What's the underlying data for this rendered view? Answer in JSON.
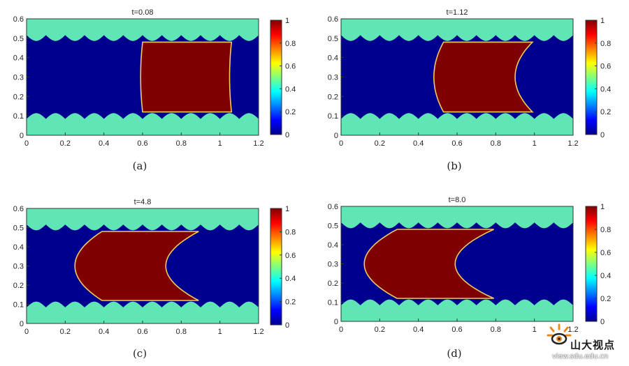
{
  "chart_data": [
    {
      "type": "heatmap",
      "panel": "(a)",
      "title": "t=0.08",
      "xlim": [
        0,
        1.2
      ],
      "ylim": [
        0,
        0.6
      ],
      "xticks": [
        "0",
        "0.2",
        "0.4",
        "0.6",
        "0.8",
        "1",
        "1.2"
      ],
      "yticks": [
        "0",
        "0.1",
        "0.2",
        "0.3",
        "0.4",
        "0.5",
        "0.6"
      ],
      "colorbar": {
        "range": [
          0,
          1
        ],
        "ticks": [
          "0",
          "0.2",
          "0.4",
          "0.6",
          "0.8",
          "1"
        ]
      },
      "droplet": {
        "left_front_x": 0.6,
        "right_front_x": 1.0,
        "left_curve": 0.01,
        "right_curve": 0.01
      },
      "wall": {
        "base_y_bottom": 0.09,
        "amplitude": 0.03,
        "period": 0.1,
        "base_y_top": 0.51
      }
    },
    {
      "type": "heatmap",
      "panel": "(b)",
      "title": "t=1.12",
      "xlim": [
        0,
        1.2
      ],
      "ylim": [
        0,
        0.6
      ],
      "xticks": [
        "0",
        "0.2",
        "0.4",
        "0.6",
        "0.8",
        "1",
        "1.2"
      ],
      "yticks": [
        "0",
        "0.1",
        "0.2",
        "0.3",
        "0.4",
        "0.5",
        "0.6"
      ],
      "colorbar": {
        "range": [
          0,
          1
        ],
        "ticks": [
          "0",
          "0.2",
          "0.4",
          "0.6",
          "0.8",
          "1"
        ]
      },
      "droplet": {
        "left_front_x": 0.53,
        "right_front_x": 0.93,
        "left_curve": 0.05,
        "right_curve": 0.09
      },
      "wall": {
        "base_y_bottom": 0.09,
        "amplitude": 0.03,
        "period": 0.1,
        "base_y_top": 0.51
      }
    },
    {
      "type": "heatmap",
      "panel": "(c)",
      "title": "t=4.8",
      "xlim": [
        0,
        1.2
      ],
      "ylim": [
        0,
        0.6
      ],
      "xticks": [
        "0",
        "0.2",
        "0.4",
        "0.6",
        "0.8",
        "1",
        "1.2"
      ],
      "yticks": [
        "0",
        "0.1",
        "0.2",
        "0.3",
        "0.4",
        "0.5",
        "0.6"
      ],
      "colorbar": {
        "range": [
          0,
          1
        ],
        "ticks": [
          "0",
          "0.2",
          "0.4",
          "0.6",
          "0.8",
          "1"
        ]
      },
      "droplet": {
        "left_front_x": 0.39,
        "right_front_x": 0.83,
        "left_curve": 0.14,
        "right_curve": 0.17
      },
      "wall": {
        "base_y_bottom": 0.09,
        "amplitude": 0.03,
        "period": 0.1,
        "base_y_top": 0.51
      }
    },
    {
      "type": "heatmap",
      "panel": "(d)",
      "title": "t=8.0",
      "xlim": [
        0,
        1.2
      ],
      "ylim": [
        0,
        0.6
      ],
      "xticks": [
        "0",
        "0.2",
        "0.4",
        "0.6",
        "0.8",
        "1",
        "1.2"
      ],
      "yticks": [
        "0",
        "0.1",
        "0.2",
        "0.3",
        "0.4",
        "0.5",
        "0.6"
      ],
      "colorbar": {
        "range": [
          0,
          1
        ],
        "ticks": [
          "0",
          "0.2",
          "0.4",
          "0.6",
          "0.8",
          "1"
        ]
      },
      "droplet": {
        "left_front_x": 0.29,
        "right_front_x": 0.73,
        "left_curve": 0.17,
        "right_curve": 0.2
      },
      "wall": {
        "base_y_bottom": 0.09,
        "amplitude": 0.03,
        "period": 0.1,
        "base_y_top": 0.51
      }
    }
  ],
  "colors": {
    "fluid_background": "#00008f",
    "wall": "#5fe6b4",
    "droplet": "#7f0000",
    "interface": "#f2c95a",
    "colormap": [
      "#00008f",
      "#0000ff",
      "#0080ff",
      "#00ffff",
      "#80ff80",
      "#ffff00",
      "#ff8000",
      "#ff0000",
      "#800000"
    ]
  },
  "watermark": {
    "name": "山大视点",
    "url": "view.sdu.edu.cn",
    "logo_icon": "sdu-logo-icon"
  }
}
